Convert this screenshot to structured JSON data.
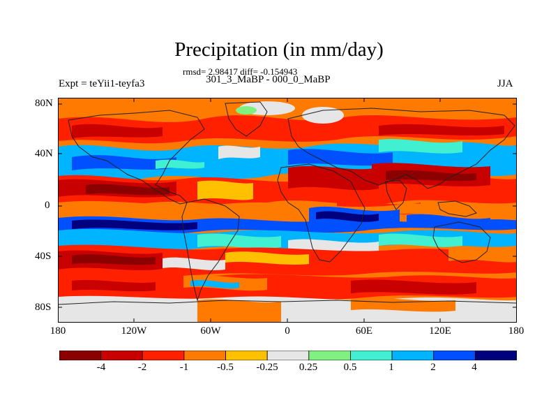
{
  "title": "Precipitation (in mm/day)",
  "stats": "rmsd= 2.98417 diff= -0.154943",
  "subtitle": "301_3_MaBP - 000_0_MaBP",
  "left_label": "Expt = teYii1-teyfa3",
  "right_label": "JJA",
  "y_ticks": [
    "80N",
    "40N",
    "0",
    "40S",
    "80S"
  ],
  "x_ticks": [
    "180",
    "120W",
    "60W",
    "0",
    "60E",
    "120E",
    "180"
  ],
  "colorbar": {
    "labels": [
      "-4",
      "-2",
      "-1",
      "-0.5",
      "-0.25",
      "0.25",
      "0.5",
      "1",
      "2",
      "4"
    ],
    "colors": [
      "#8b0000",
      "#c80000",
      "#ff2000",
      "#ff7a00",
      "#ffc000",
      "#e6e6e6",
      "#80f080",
      "#40f0d0",
      "#00b4ff",
      "#0050ff",
      "#00007f"
    ]
  },
  "map_colors": {
    "ocean_bg": "#ff7a00",
    "coast": "#222222"
  }
}
